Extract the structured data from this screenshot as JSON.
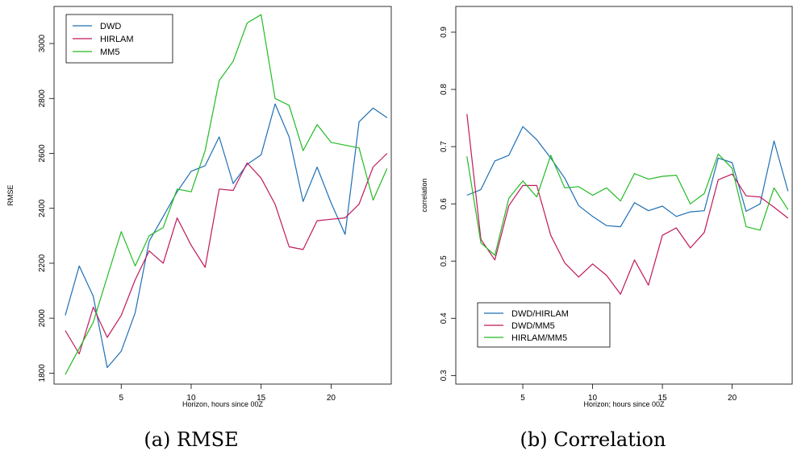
{
  "chart_data": [
    {
      "type": "line",
      "title": "",
      "xlabel": "Horizon, hours since 00Z",
      "ylabel": "RMSE",
      "caption": "(a) RMSE",
      "xlim": [
        0.2,
        24.3
      ],
      "ylim": [
        1760,
        3135
      ],
      "xticks": [
        5,
        10,
        15,
        20
      ],
      "yticks": [
        1800,
        2000,
        2200,
        2400,
        2600,
        2800,
        3000
      ],
      "legend_position": "top-left",
      "x": [
        1,
        2,
        3,
        4,
        5,
        6,
        7,
        8,
        9,
        10,
        11,
        12,
        13,
        14,
        15,
        16,
        17,
        18,
        19,
        20,
        21,
        22,
        23,
        24
      ],
      "series": [
        {
          "name": "DWD",
          "color": "#1f6fb4",
          "values": [
            2010,
            2190,
            2080,
            1820,
            1880,
            2020,
            2280,
            2370,
            2460,
            2535,
            2555,
            2660,
            2490,
            2560,
            2595,
            2780,
            2660,
            2425,
            2550,
            2420,
            2305,
            2715,
            2765,
            2730
          ]
        },
        {
          "name": "HIRLAM",
          "color": "#c0185c",
          "values": [
            1955,
            1870,
            2040,
            1930,
            2010,
            2140,
            2245,
            2200,
            2365,
            2265,
            2185,
            2470,
            2465,
            2565,
            2510,
            2415,
            2260,
            2250,
            2355,
            2360,
            2365,
            2415,
            2550,
            2600
          ]
        },
        {
          "name": "MM5",
          "color": "#22bb22",
          "values": [
            1795,
            1890,
            1985,
            2150,
            2315,
            2190,
            2300,
            2330,
            2470,
            2460,
            2610,
            2865,
            2935,
            3075,
            3105,
            2800,
            2775,
            2610,
            2705,
            2640,
            2630,
            2620,
            2430,
            2545
          ]
        }
      ]
    },
    {
      "type": "line",
      "title": "",
      "xlabel": "Horizon; hours since 00Z",
      "ylabel": "correlation",
      "caption": "(b) Correlation",
      "xlim": [
        0.2,
        24.3
      ],
      "ylim": [
        0.285,
        0.945
      ],
      "xticks": [
        5,
        10,
        15,
        20
      ],
      "yticks": [
        0.3,
        0.4,
        0.5,
        0.6,
        0.7,
        0.8,
        0.9
      ],
      "legend_position": "bottom-left",
      "x": [
        1,
        2,
        3,
        4,
        5,
        6,
        7,
        8,
        9,
        10,
        11,
        12,
        13,
        14,
        15,
        16,
        17,
        18,
        19,
        20,
        21,
        22,
        23,
        24
      ],
      "series": [
        {
          "name": "DWD/HIRLAM",
          "color": "#1f6fb4",
          "values": [
            0.615,
            0.625,
            0.675,
            0.685,
            0.735,
            0.712,
            0.68,
            0.645,
            0.597,
            0.578,
            0.562,
            0.56,
            0.602,
            0.588,
            0.596,
            0.578,
            0.586,
            0.588,
            0.68,
            0.672,
            0.587,
            0.6,
            0.71,
            0.622
          ]
        },
        {
          "name": "DWD/MM5",
          "color": "#c0185c",
          "values": [
            0.757,
            0.538,
            0.502,
            0.597,
            0.632,
            0.632,
            0.545,
            0.497,
            0.472,
            0.495,
            0.475,
            0.442,
            0.502,
            0.458,
            0.545,
            0.558,
            0.523,
            0.55,
            0.642,
            0.652,
            0.614,
            0.612,
            0.594,
            0.575
          ]
        },
        {
          "name": "HIRLAM/MM5",
          "color": "#22bb22",
          "values": [
            0.683,
            0.532,
            0.51,
            0.61,
            0.64,
            0.612,
            0.685,
            0.628,
            0.63,
            0.615,
            0.628,
            0.605,
            0.653,
            0.643,
            0.648,
            0.65,
            0.6,
            0.618,
            0.687,
            0.662,
            0.56,
            0.554,
            0.628,
            0.59
          ]
        }
      ]
    }
  ]
}
